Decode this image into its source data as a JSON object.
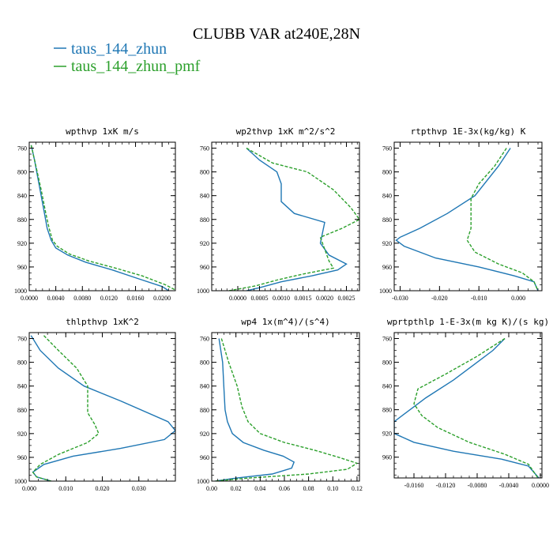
{
  "title": "CLUBB VAR at240E,28N",
  "legend": [
    {
      "label": "taus_144_zhun",
      "color": "#1f77b4"
    },
    {
      "label": "taus_144_zhun_pmf",
      "color": "#2ca02c"
    }
  ],
  "chart_data": [
    {
      "type": "line",
      "title": "wpthvp  1xK m/s",
      "xlim": [
        0,
        0.022
      ],
      "ylim": [
        1000,
        750
      ],
      "y_reversed": true,
      "xticks": [
        "0.0000",
        "0.0040",
        "0.0080",
        "0.0120",
        "0.0160",
        "0.0200"
      ],
      "xtick_values": [
        0,
        0.004,
        0.008,
        0.012,
        0.016,
        0.02
      ],
      "yticks": [
        "760",
        "800",
        "840",
        "880",
        "920",
        "960",
        "1000"
      ],
      "ytick_values": [
        760,
        800,
        840,
        880,
        920,
        960,
        1000
      ],
      "series": [
        {
          "name": "taus_144_zhun",
          "color": "#1f77b4",
          "dash": "",
          "x": [
            0.0003,
            0.0008,
            0.0013,
            0.0018,
            0.0023,
            0.0027,
            0.0033,
            0.004,
            0.0058,
            0.0085,
            0.0125,
            0.0165,
            0.02,
            0.021
          ],
          "y": [
            755,
            780,
            810,
            840,
            870,
            895,
            915,
            928,
            940,
            952,
            965,
            980,
            993,
            1000
          ]
        },
        {
          "name": "taus_144_zhun_pmf",
          "color": "#2ca02c",
          "dash": "4,2",
          "x": [
            0.0003,
            0.001,
            0.0018,
            0.0025,
            0.003,
            0.0035,
            0.0042,
            0.006,
            0.009,
            0.013,
            0.017,
            0.0205,
            0.0222
          ],
          "y": [
            755,
            790,
            830,
            870,
            895,
            915,
            925,
            938,
            950,
            962,
            975,
            990,
            1000
          ]
        }
      ]
    },
    {
      "type": "line",
      "title": "wp2thvp  1xK m^2/s^2",
      "xlim": [
        -0.0006,
        0.0028
      ],
      "ylim": [
        1000,
        750
      ],
      "y_reversed": true,
      "xticks": [
        "0.0000",
        "0.0005",
        "0.0010",
        "0.0015",
        "0.0020",
        "0.0025"
      ],
      "xtick_values": [
        0,
        0.0005,
        0.001,
        0.0015,
        0.002,
        0.0025
      ],
      "yticks": [
        "760",
        "800",
        "840",
        "880",
        "920",
        "960",
        "1000"
      ],
      "ytick_values": [
        760,
        800,
        840,
        880,
        920,
        960,
        1000
      ],
      "series": [
        {
          "name": "taus_144_zhun",
          "color": "#1f77b4",
          "dash": "",
          "x": [
            0.0002,
            0.0005,
            0.0009,
            0.001,
            0.001,
            0.0013,
            0.002,
            0.0019,
            0.0021,
            0.0025,
            0.0023,
            0.0017,
            0.001,
            0.0005,
            0.0002
          ],
          "y": [
            760,
            780,
            800,
            820,
            850,
            870,
            885,
            920,
            940,
            955,
            965,
            975,
            985,
            995,
            1000
          ]
        },
        {
          "name": "taus_144_zhun_pmf",
          "color": "#2ca02c",
          "dash": "4,2",
          "x": [
            0.0002,
            0.0008,
            0.0016,
            0.0022,
            0.0026,
            0.0028,
            0.0024,
            0.0019,
            0.002,
            0.0021,
            0.0022,
            0.0015,
            0.0009,
            0.0004,
            -0.0002
          ],
          "y": [
            760,
            785,
            800,
            830,
            860,
            880,
            895,
            910,
            930,
            950,
            962,
            972,
            982,
            992,
            1000
          ]
        }
      ]
    },
    {
      "type": "line",
      "title": "rtpthvp  1E-3x(kg/kg) K",
      "xlim": [
        -0.0315,
        0.006
      ],
      "ylim": [
        1000,
        750
      ],
      "y_reversed": true,
      "xticks": [
        "-0.030",
        "-0.020",
        "-0.010",
        "0.000"
      ],
      "xtick_values": [
        -0.03,
        -0.02,
        -0.01,
        0
      ],
      "yticks": [
        "760",
        "800",
        "840",
        "880",
        "920",
        "960",
        "1000"
      ],
      "ytick_values": [
        760,
        800,
        840,
        880,
        920,
        960,
        1000
      ],
      "series": [
        {
          "name": "taus_144_zhun",
          "color": "#1f77b4",
          "dash": "",
          "x": [
            -0.002,
            -0.005,
            -0.011,
            -0.018,
            -0.025,
            -0.03,
            -0.031,
            -0.029,
            -0.021,
            -0.01,
            -0.001,
            0.004,
            0.005
          ],
          "y": [
            760,
            790,
            840,
            870,
            895,
            910,
            915,
            925,
            945,
            960,
            975,
            985,
            1000
          ]
        },
        {
          "name": "taus_144_zhun_pmf",
          "color": "#2ca02c",
          "dash": "4,2",
          "x": [
            -0.003,
            -0.006,
            -0.01,
            -0.012,
            -0.012,
            -0.012,
            -0.013,
            -0.011,
            -0.005,
            0.001,
            0.004,
            0.005
          ],
          "y": [
            760,
            790,
            820,
            845,
            870,
            895,
            915,
            935,
            955,
            970,
            985,
            1000
          ]
        }
      ]
    },
    {
      "type": "line",
      "title": "thlpthvp  1xK^2",
      "xlim": [
        0,
        0.04
      ],
      "ylim": [
        1000,
        750
      ],
      "y_reversed": true,
      "xticks": [
        "0.000",
        "0.010",
        "0.020",
        "0.030"
      ],
      "xtick_values": [
        0,
        0.01,
        0.02,
        0.03
      ],
      "yticks": [
        "760",
        "800",
        "840",
        "880",
        "920",
        "960",
        "1000"
      ],
      "ytick_values": [
        760,
        800,
        840,
        880,
        920,
        960,
        1000
      ],
      "series": [
        {
          "name": "taus_144_zhun",
          "color": "#1f77b4",
          "dash": "",
          "x": [
            0.0005,
            0.003,
            0.008,
            0.015,
            0.025,
            0.038,
            0.04,
            0.037,
            0.025,
            0.012,
            0.004,
            0.001,
            0.002,
            0.006
          ],
          "y": [
            755,
            780,
            810,
            840,
            865,
            900,
            915,
            930,
            945,
            958,
            972,
            985,
            993,
            1000
          ]
        },
        {
          "name": "taus_144_zhun_pmf",
          "color": "#2ca02c",
          "dash": "4,2",
          "x": [
            0.004,
            0.008,
            0.013,
            0.016,
            0.016,
            0.016,
            0.018,
            0.019,
            0.016,
            0.008,
            0.003,
            0.001,
            0.002,
            0.006
          ],
          "y": [
            755,
            780,
            810,
            840,
            860,
            885,
            905,
            920,
            935,
            955,
            972,
            985,
            993,
            1000
          ]
        }
      ]
    },
    {
      "type": "line",
      "title": "wp4  1x(m^4)/(s^4)",
      "xlim": [
        0,
        0.122
      ],
      "ylim": [
        1000,
        750
      ],
      "y_reversed": true,
      "xticks": [
        "0.00",
        "0.02",
        "0.04",
        "0.06",
        "0.08",
        "0.10",
        "0.12"
      ],
      "xtick_values": [
        0,
        0.02,
        0.04,
        0.06,
        0.08,
        0.1,
        0.12
      ],
      "yticks": [
        "760",
        "800",
        "840",
        "880",
        "920",
        "960",
        "1000"
      ],
      "ytick_values": [
        760,
        800,
        840,
        880,
        920,
        960,
        1000
      ],
      "series": [
        {
          "name": "taus_144_zhun",
          "color": "#1f77b4",
          "dash": "",
          "x": [
            0.006,
            0.009,
            0.01,
            0.011,
            0.013,
            0.017,
            0.026,
            0.043,
            0.059,
            0.068,
            0.066,
            0.05,
            0.02,
            0.003
          ],
          "y": [
            760,
            800,
            840,
            880,
            900,
            920,
            935,
            948,
            958,
            968,
            978,
            988,
            995,
            1000
          ]
        },
        {
          "name": "taus_144_zhun_pmf",
          "color": "#2ca02c",
          "dash": "4,2",
          "x": [
            0.008,
            0.014,
            0.021,
            0.025,
            0.03,
            0.04,
            0.06,
            0.085,
            0.105,
            0.12,
            0.112,
            0.08,
            0.03,
            0.002
          ],
          "y": [
            760,
            800,
            840,
            875,
            900,
            920,
            935,
            948,
            960,
            970,
            980,
            988,
            995,
            1000
          ]
        }
      ]
    },
    {
      "type": "line",
      "title": "wprtpthlp  1-E-3x(m kg K)/(s kg)",
      "xlim": [
        -0.0185,
        0.0002
      ],
      "ylim": [
        995,
        750
      ],
      "y_reversed": true,
      "xticks": [
        "-0.0160",
        "-0.0120",
        "-0.0080",
        "-0.0040",
        "0.0000"
      ],
      "xtick_values": [
        -0.016,
        -0.012,
        -0.008,
        -0.004,
        0
      ],
      "yticks": [
        "760",
        "800",
        "840",
        "880",
        "920",
        "960"
      ],
      "ytick_values": [
        760,
        800,
        840,
        880,
        920,
        960
      ],
      "series": [
        {
          "name": "taus_144_zhun",
          "color": "#1f77b4",
          "dash": "",
          "x": [
            -0.0045,
            -0.006,
            -0.008,
            -0.011,
            -0.0145,
            -0.0185,
            -0.0185,
            -0.016,
            -0.011,
            -0.005,
            -0.0015,
            -0.0002
          ],
          "y": [
            760,
            780,
            800,
            830,
            860,
            900,
            920,
            935,
            950,
            963,
            975,
            995
          ]
        },
        {
          "name": "taus_144_zhun_pmf",
          "color": "#2ca02c",
          "dash": "4,2",
          "x": [
            -0.0045,
            -0.008,
            -0.012,
            -0.0155,
            -0.016,
            -0.015,
            -0.013,
            -0.009,
            -0.0045,
            -0.0015,
            -0.0003
          ],
          "y": [
            760,
            790,
            820,
            845,
            870,
            890,
            910,
            935,
            955,
            972,
            995
          ]
        }
      ]
    }
  ]
}
